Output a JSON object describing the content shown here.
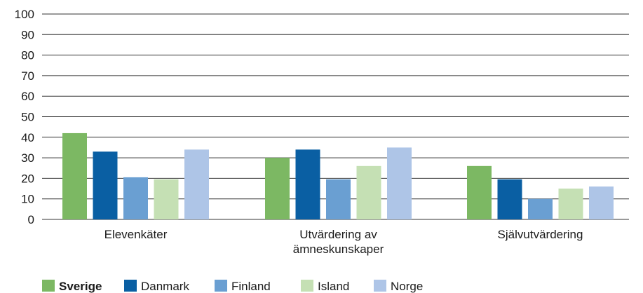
{
  "chart_data": {
    "type": "bar",
    "categories": [
      [
        "Elevenkäter"
      ],
      [
        "Utvärdering av",
        "ämneskunskaper"
      ],
      [
        "Självutvärdering"
      ]
    ],
    "series": [
      {
        "name": "Sverige",
        "color": "#7cb863",
        "values": [
          42,
          30,
          26
        ]
      },
      {
        "name": "Danmark",
        "color": "#0a5fa3",
        "values": [
          33,
          34,
          19.5
        ]
      },
      {
        "name": "Finland",
        "color": "#6a9fd2",
        "values": [
          20.5,
          19.5,
          10
        ]
      },
      {
        "name": "Island",
        "color": "#c5e0b4",
        "values": [
          19.5,
          26,
          15
        ]
      },
      {
        "name": "Norge",
        "color": "#aec5e7",
        "values": [
          34,
          35,
          16
        ]
      }
    ],
    "yticks": [
      0,
      10,
      20,
      30,
      40,
      50,
      60,
      70,
      80,
      90,
      100
    ],
    "ylim": [
      0,
      100
    ],
    "grid": true,
    "legend_position": "bottom-left",
    "legend_highlight": "Sverige"
  }
}
